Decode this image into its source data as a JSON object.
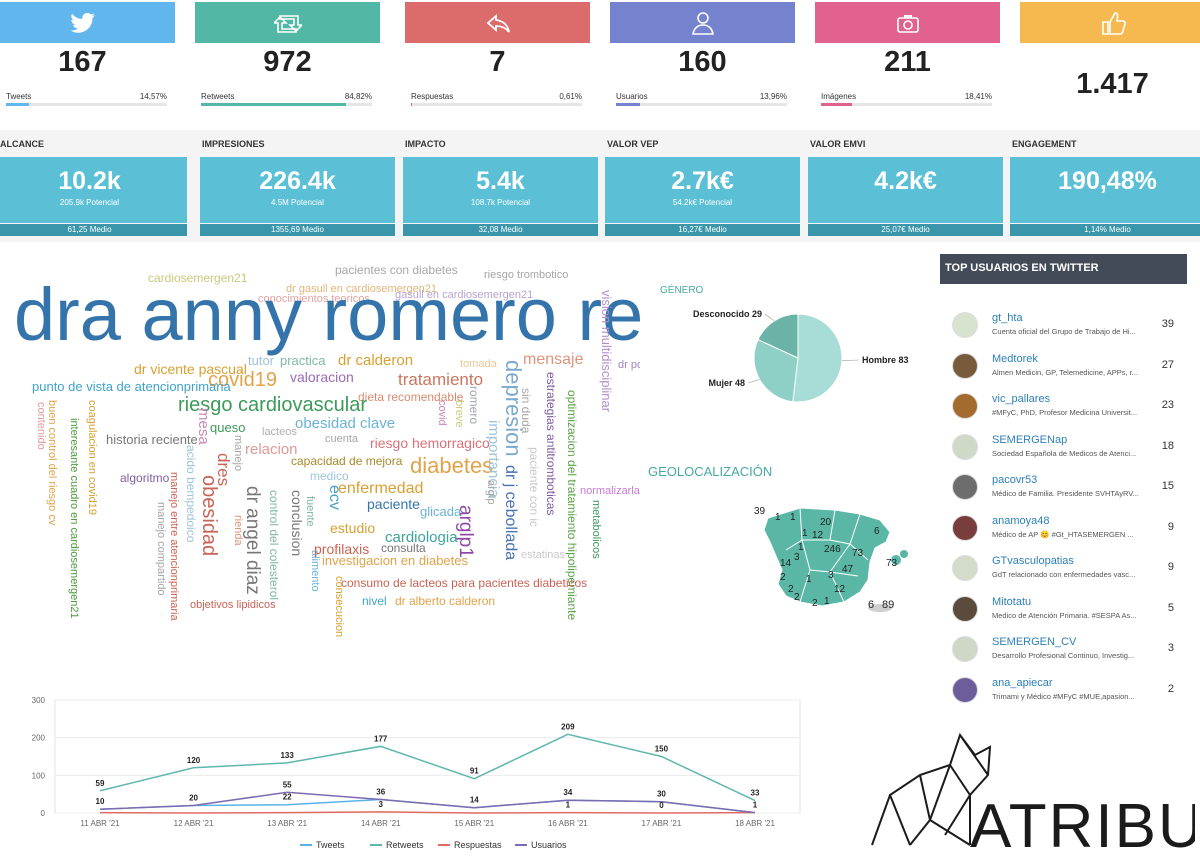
{
  "stats": [
    {
      "value": "167",
      "label": "Tweets",
      "pct": "14,57%",
      "fill": 14.57,
      "color": "#62b6ee",
      "icon": "twitter-bird-icon"
    },
    {
      "value": "972",
      "label": "Retweets",
      "pct": "84,82%",
      "fill": 84.82,
      "color": "#52b7a5",
      "icon": "retweet-icon"
    },
    {
      "value": "7",
      "label": "Respuestas",
      "pct": "0,61%",
      "fill": 0.61,
      "color": "#dc6b6b",
      "icon": "reply-icon"
    },
    {
      "value": "160",
      "label": "Usuarios",
      "pct": "13,96%",
      "fill": 13.96,
      "color": "#7583cf",
      "icon": "user-icon"
    },
    {
      "value": "211",
      "label": "Imágenes",
      "pct": "18,41%",
      "fill": 18.41,
      "color": "#e2628f",
      "icon": "camera-icon"
    },
    {
      "value": "1.417",
      "label": "",
      "pct": "",
      "fill": 0,
      "color": "#f6b94f",
      "icon": "thumbs-up-icon"
    }
  ],
  "metrics": [
    {
      "title": "ALCANCE",
      "value": "10.2k",
      "sub": "205.9k Potencial",
      "foot": "61,25 Medio"
    },
    {
      "title": "IMPRESIONES",
      "value": "226.4k",
      "sub": "4.5M Potencial",
      "foot": "1355,69 Medio"
    },
    {
      "title": "IMPACTO",
      "value": "5.4k",
      "sub": "108.7k Potencial",
      "foot": "32,08 Medio"
    },
    {
      "title": "VALOR VEP",
      "value": "2.7k€",
      "sub": "54.2k€ Potencial",
      "foot": "16,27€ Medio"
    },
    {
      "title": "VALOR EMVI",
      "value": "4.2k€",
      "sub": "",
      "foot": "25,07€ Medio"
    },
    {
      "title": "ENGAGEMENT",
      "value": "190,48%",
      "sub": "",
      "foot": "1,14% Medio"
    }
  ],
  "word_cloud": [
    "cardiosemergen21",
    "pacientes con diabetes",
    "dr gasull en cardiosemergen21",
    "riesgo trombotico",
    "conocimientos teoricos",
    "gasull en cardiosemergen21",
    "dra anny romero respecto",
    "vision multidisciplinar",
    "dr vicente pascual",
    "dr calderon",
    "mensaje",
    "covid19",
    "tutor",
    "practica",
    "valoracion",
    "tratamiento",
    "tomada",
    "dr po",
    "punto de vista de atencionprimaria",
    "depresion",
    "dieta recomendable",
    "riesgo cardiovascular",
    "obesidad clave",
    "estrategias antitromboticas",
    "optimizacion del tratamiento hipolipemiante",
    "buen control del riesgo cv",
    "coagulacion en covid19",
    "interesante cuadro en cardiosemergen21",
    "contenido",
    "historia reciente",
    "queso",
    "lacteos",
    "cuenta",
    "riesgo hemorragico",
    "relacion",
    "mesa",
    "diabetes",
    "capacidad de mejora",
    "importancia",
    "dr j cebollada",
    "normalizarla",
    "acido bempedoico",
    "algoritmo",
    "dres",
    "medico",
    "enfermedad",
    "sin duda",
    "paciente con ic",
    "manejo entre atencionprimaria",
    "obesidad",
    "dr angel diaz",
    "control del colesterol",
    "conclusion",
    "ecv",
    "paciente",
    "glicada",
    "arglp1",
    "estatinas",
    "metabolicos",
    "manejo compartido",
    "rienda",
    "fuente",
    "alimento",
    "estudio",
    "cardiologia",
    "profilaxis",
    "consulta",
    "investigacion en diabetes",
    "consumo de lacteos para pacientes diabeticos",
    "consecucion",
    "nivel",
    "dr alberto calderon",
    "objetivos lipidicos",
    "breve",
    "romero",
    "covid",
    "manejo",
    "arglp"
  ],
  "gender": {
    "title": "GÉNERO",
    "slices": [
      {
        "label": "Hombre 83",
        "value": 83,
        "color": "#a8dcd6"
      },
      {
        "label": "Mujer 48",
        "value": 48,
        "color": "#8fd0c6"
      },
      {
        "label": "Desconocido 29",
        "value": 29,
        "color": "#6bb3a6"
      }
    ]
  },
  "geo": {
    "title": "GEOLOCALIZACIÓN",
    "labels": [
      "39",
      "1",
      "1",
      "20",
      "6",
      "1",
      "12",
      "246",
      "73",
      "1",
      "14",
      "3",
      "47",
      "2",
      "3",
      "1",
      "2",
      "12",
      "2",
      "2",
      "1",
      "73",
      "6",
      "89"
    ]
  },
  "top_users": {
    "header": "TOP USUARIOS EN TWITTER",
    "rows": [
      {
        "name": "gt_hta",
        "desc": "Cuenta oficial del Grupo de Trabajo de Hi...",
        "count": "39"
      },
      {
        "name": "Medtorek",
        "desc": "Almen Medicin, GP, Telemedicine, APPs, r...",
        "count": "27"
      },
      {
        "name": "vic_pallares",
        "desc": "#MFyC, PhD, Profesor Medicina Universit...",
        "count": "23"
      },
      {
        "name": "SEMERGENap",
        "desc": "Sociedad Española de Medicos de Atenci...",
        "count": "18"
      },
      {
        "name": "pacovr53",
        "desc": "Médico de Familia. Presidente SVHTAyRV...",
        "count": "15"
      },
      {
        "name": "anamoya48",
        "desc": "Médico de AP 😊 #Gt_HTASEMERGEN ...",
        "count": "9"
      },
      {
        "name": "GTvasculopatias",
        "desc": "GdT relacionado con enfermedades vasc...",
        "count": "9"
      },
      {
        "name": "Mitotatu",
        "desc": "Medico de Atención Primaria. #SESPA As...",
        "count": "5"
      },
      {
        "name": "SEMERGEN_CV",
        "desc": "Desarrollo Profesional Continuo, Investig...",
        "count": "3"
      },
      {
        "name": "ana_apiecar",
        "desc": "Trimami y Médico #MFyC #MUE,apasion...",
        "count": "2"
      }
    ]
  },
  "chart_data": {
    "type": "line",
    "categories": [
      "11 ABR '21",
      "12 ABR '21",
      "13 ABR '21",
      "14 ABR '21",
      "15 ABR '21",
      "16 ABR '21",
      "17 ABR '21",
      "18 ABR '21"
    ],
    "series": [
      {
        "name": "Tweets",
        "values": [
          10,
          20,
          22,
          36,
          14,
          34,
          30,
          1
        ],
        "color": "#5ab1e8"
      },
      {
        "name": "Retweets",
        "values": [
          59,
          120,
          133,
          177,
          91,
          209,
          150,
          33
        ],
        "color": "#5fb6ae"
      },
      {
        "name": "Respuestas",
        "values": [
          1,
          0,
          1,
          3,
          0,
          1,
          0,
          1
        ],
        "color": "#e06b63"
      },
      {
        "name": "Usuarios",
        "values": [
          10,
          20,
          55,
          36,
          14,
          34,
          30,
          1
        ],
        "color": "#7c6bb0"
      }
    ],
    "labels": [
      {
        "x": 0,
        "y": 59,
        "text": "59"
      },
      {
        "x": 1,
        "y": 120,
        "text": "120"
      },
      {
        "x": 2,
        "y": 133,
        "text": "133"
      },
      {
        "x": 3,
        "y": 177,
        "text": "177"
      },
      {
        "x": 4,
        "y": 91,
        "text": "91"
      },
      {
        "x": 5,
        "y": 209,
        "text": "209"
      },
      {
        "x": 6,
        "y": 150,
        "text": "150"
      },
      {
        "x": 7,
        "y": 33,
        "text": "33"
      },
      {
        "x": 0,
        "y": 10,
        "text": "10"
      },
      {
        "x": 1,
        "y": 20,
        "text": "20"
      },
      {
        "x": 2,
        "y": 55,
        "text": "55"
      },
      {
        "x": 2,
        "y": 22,
        "text": "22"
      },
      {
        "x": 3,
        "y": 36,
        "text": "36"
      },
      {
        "x": 3,
        "y": 3,
        "text": "3"
      },
      {
        "x": 4,
        "y": 14,
        "text": "14"
      },
      {
        "x": 5,
        "y": 34,
        "text": "34"
      },
      {
        "x": 5,
        "y": 1,
        "text": "1"
      },
      {
        "x": 6,
        "y": 30,
        "text": "30"
      },
      {
        "x": 6,
        "y": 0,
        "text": "0"
      },
      {
        "x": 7,
        "y": 1,
        "text": "1"
      }
    ],
    "yticks": [
      0,
      100,
      200,
      300
    ],
    "ylim": [
      0,
      300
    ],
    "grid": true,
    "legend": "bottom"
  },
  "logo": {
    "text": "ATRIBUS"
  }
}
